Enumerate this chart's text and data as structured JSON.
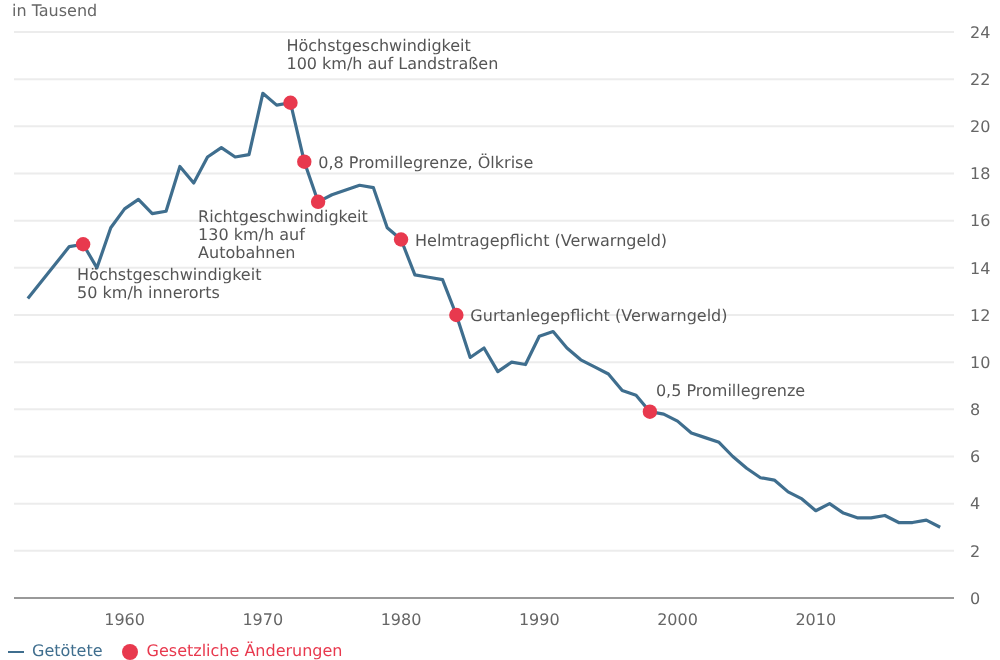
{
  "chart_data": {
    "type": "line",
    "ylabel": "in Tausend",
    "x": [
      1953,
      1956,
      1957,
      1958,
      1959,
      1960,
      1961,
      1962,
      1963,
      1964,
      1965,
      1966,
      1967,
      1968,
      1969,
      1970,
      1971,
      1972,
      1973,
      1974,
      1975,
      1976,
      1977,
      1978,
      1979,
      1980,
      1981,
      1982,
      1983,
      1984,
      1985,
      1986,
      1987,
      1988,
      1989,
      1990,
      1991,
      1992,
      1993,
      1994,
      1995,
      1996,
      1997,
      1998,
      1999,
      2000,
      2001,
      2002,
      2003,
      2004,
      2005,
      2006,
      2007,
      2008,
      2009,
      2010,
      2011,
      2012,
      2013,
      2014,
      2015,
      2016,
      2017,
      2018,
      2019
    ],
    "series": [
      {
        "name": "Getötete",
        "color": "#3f6e8e",
        "values": [
          12.7,
          14.9,
          15.0,
          14.0,
          15.7,
          16.5,
          16.9,
          16.3,
          16.4,
          18.3,
          17.6,
          18.7,
          19.1,
          18.7,
          18.8,
          21.4,
          20.9,
          21.0,
          18.5,
          16.8,
          17.1,
          17.3,
          17.5,
          17.4,
          15.7,
          15.2,
          13.7,
          13.6,
          13.5,
          12.0,
          10.2,
          10.6,
          9.6,
          10.0,
          9.9,
          11.1,
          11.3,
          10.6,
          10.1,
          9.8,
          9.5,
          8.8,
          8.6,
          7.9,
          7.8,
          7.5,
          7.0,
          6.8,
          6.6,
          6.0,
          5.5,
          5.1,
          5.0,
          4.5,
          4.2,
          3.7,
          4.0,
          3.6,
          3.4,
          3.4,
          3.5,
          3.2,
          3.2,
          3.3,
          3.0
        ]
      },
      {
        "name": "Gesetzliche Änderungen",
        "type": "scatter",
        "marker": "circle",
        "color": "#e8394e",
        "x": [
          1957,
          1972,
          1973,
          1974,
          1980,
          1984,
          1998
        ],
        "values": [
          15.0,
          21.0,
          18.5,
          16.8,
          15.2,
          12.0,
          7.9
        ]
      }
    ],
    "xlim": [
      1952,
      2020
    ],
    "xticks": [
      1960,
      1970,
      1980,
      1990,
      2000,
      2010
    ],
    "ylim": [
      0,
      24
    ],
    "yticks": [
      0,
      2,
      4,
      6,
      8,
      10,
      12,
      14,
      16,
      18,
      20,
      22,
      24
    ],
    "grid": "y",
    "legend": "bottom",
    "annotations": [
      {
        "text": "Höchstgeschwindigkeit\n50 km/h innerorts",
        "x": 1957,
        "y": 15.0
      },
      {
        "text": "Höchstgeschwindigkeit\n100 km/h auf Landstraßen",
        "x": 1972,
        "y": 21.0
      },
      {
        "text": "0,8 Promillegrenze, Ölkrise",
        "x": 1973,
        "y": 18.5
      },
      {
        "text": "Richtgeschwindigkeit\n130 km/h auf\nAutobahnen",
        "x": 1974,
        "y": 16.8
      },
      {
        "text": "Helmtragepflicht (Verwarngeld)",
        "x": 1980,
        "y": 15.2
      },
      {
        "text": "Gurtanlegepflicht (Verwarngeld)",
        "x": 1984,
        "y": 12.0
      },
      {
        "text": "0,5 Promillegrenze",
        "x": 1998,
        "y": 7.9
      }
    ]
  }
}
